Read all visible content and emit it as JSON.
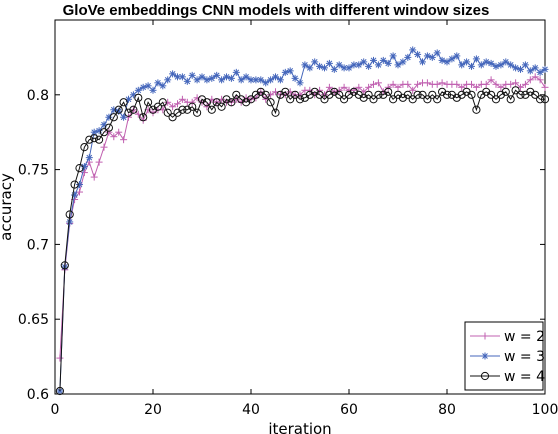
{
  "chart_data": {
    "type": "line",
    "title": "GloVe embeddings CNN models with different window sizes",
    "xlabel": "iteration",
    "ylabel": "accuracy",
    "xlim": [
      0,
      100
    ],
    "ylim": [
      0.6,
      0.85
    ],
    "xticks": [
      0,
      20,
      40,
      60,
      80,
      100
    ],
    "yticks": [
      0.6,
      0.65,
      0.7,
      0.75,
      0.8
    ],
    "ytick_labels": [
      "0.6",
      "0.65",
      "0.7",
      "0.75",
      "0.8"
    ],
    "grid": false,
    "legend_position": "bottom-right",
    "x": [
      1,
      2,
      3,
      4,
      5,
      6,
      7,
      8,
      9,
      10,
      11,
      12,
      13,
      14,
      15,
      16,
      17,
      18,
      19,
      20,
      21,
      22,
      23,
      24,
      25,
      26,
      27,
      28,
      29,
      30,
      31,
      32,
      33,
      34,
      35,
      36,
      37,
      38,
      39,
      40,
      41,
      42,
      43,
      44,
      45,
      46,
      47,
      48,
      49,
      50,
      51,
      52,
      53,
      54,
      55,
      56,
      57,
      58,
      59,
      60,
      61,
      62,
      63,
      64,
      65,
      66,
      67,
      68,
      69,
      70,
      71,
      72,
      73,
      74,
      75,
      76,
      77,
      78,
      79,
      80,
      81,
      82,
      83,
      84,
      85,
      86,
      87,
      88,
      89,
      90,
      91,
      92,
      93,
      94,
      95,
      96,
      97,
      98,
      99,
      100
    ],
    "series": [
      {
        "name": "w = 2",
        "color": "#c060b0",
        "marker": "plus",
        "values": [
          0.624,
          0.683,
          0.714,
          0.73,
          0.735,
          0.748,
          0.755,
          0.745,
          0.755,
          0.765,
          0.775,
          0.772,
          0.775,
          0.77,
          0.785,
          0.79,
          0.787,
          0.783,
          0.79,
          0.788,
          0.79,
          0.79,
          0.795,
          0.792,
          0.794,
          0.797,
          0.795,
          0.795,
          0.798,
          0.795,
          0.792,
          0.797,
          0.795,
          0.797,
          0.795,
          0.795,
          0.797,
          0.795,
          0.798,
          0.797,
          0.798,
          0.802,
          0.797,
          0.8,
          0.802,
          0.8,
          0.8,
          0.802,
          0.8,
          0.8,
          0.803,
          0.803,
          0.8,
          0.803,
          0.8,
          0.805,
          0.802,
          0.803,
          0.805,
          0.803,
          0.803,
          0.805,
          0.802,
          0.805,
          0.807,
          0.808,
          0.802,
          0.805,
          0.807,
          0.805,
          0.807,
          0.807,
          0.803,
          0.807,
          0.808,
          0.808,
          0.807,
          0.807,
          0.808,
          0.807,
          0.807,
          0.807,
          0.805,
          0.807,
          0.807,
          0.805,
          0.807,
          0.807,
          0.81,
          0.807,
          0.805,
          0.807,
          0.807,
          0.808,
          0.805,
          0.807,
          0.81,
          0.812,
          0.81,
          0.805
        ]
      },
      {
        "name": "w = 3",
        "color": "#4466bb",
        "marker": "star",
        "values": [
          0.602,
          0.685,
          0.715,
          0.733,
          0.74,
          0.752,
          0.758,
          0.775,
          0.776,
          0.78,
          0.785,
          0.79,
          0.789,
          0.785,
          0.797,
          0.8,
          0.803,
          0.805,
          0.806,
          0.803,
          0.808,
          0.806,
          0.81,
          0.814,
          0.812,
          0.812,
          0.809,
          0.813,
          0.81,
          0.812,
          0.81,
          0.811,
          0.813,
          0.81,
          0.812,
          0.811,
          0.815,
          0.81,
          0.812,
          0.81,
          0.81,
          0.81,
          0.808,
          0.81,
          0.812,
          0.81,
          0.815,
          0.816,
          0.811,
          0.808,
          0.82,
          0.818,
          0.822,
          0.819,
          0.818,
          0.821,
          0.817,
          0.82,
          0.818,
          0.818,
          0.82,
          0.82,
          0.822,
          0.819,
          0.823,
          0.82,
          0.823,
          0.821,
          0.826,
          0.82,
          0.822,
          0.825,
          0.83,
          0.827,
          0.822,
          0.826,
          0.825,
          0.828,
          0.823,
          0.822,
          0.824,
          0.826,
          0.82,
          0.822,
          0.819,
          0.824,
          0.82,
          0.822,
          0.821,
          0.819,
          0.82,
          0.822,
          0.82,
          0.818,
          0.817,
          0.82,
          0.816,
          0.818,
          0.815,
          0.817
        ]
      },
      {
        "name": "w = 4",
        "color": "#111111",
        "marker": "circle",
        "values": [
          0.602,
          0.686,
          0.72,
          0.74,
          0.751,
          0.765,
          0.77,
          0.771,
          0.77,
          0.775,
          0.778,
          0.785,
          0.79,
          0.795,
          0.788,
          0.79,
          0.798,
          0.785,
          0.795,
          0.79,
          0.792,
          0.795,
          0.788,
          0.785,
          0.788,
          0.79,
          0.79,
          0.792,
          0.788,
          0.797,
          0.795,
          0.79,
          0.795,
          0.792,
          0.797,
          0.795,
          0.8,
          0.797,
          0.795,
          0.797,
          0.8,
          0.802,
          0.8,
          0.795,
          0.788,
          0.8,
          0.802,
          0.797,
          0.8,
          0.797,
          0.798,
          0.8,
          0.802,
          0.8,
          0.797,
          0.8,
          0.802,
          0.8,
          0.797,
          0.8,
          0.802,
          0.8,
          0.798,
          0.8,
          0.797,
          0.8,
          0.8,
          0.802,
          0.797,
          0.8,
          0.798,
          0.8,
          0.797,
          0.8,
          0.8,
          0.797,
          0.8,
          0.797,
          0.802,
          0.8,
          0.8,
          0.798,
          0.8,
          0.802,
          0.8,
          0.79,
          0.8,
          0.802,
          0.8,
          0.797,
          0.8,
          0.802,
          0.797,
          0.803,
          0.8,
          0.8,
          0.802,
          0.8,
          0.797,
          0.797
        ]
      }
    ]
  }
}
